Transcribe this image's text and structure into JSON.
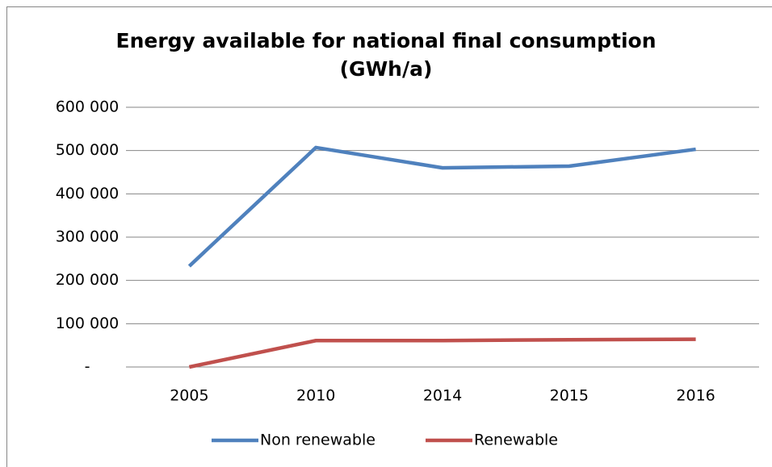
{
  "chart_data": {
    "type": "line",
    "title": [
      "Energy available for national final consumption",
      "(GWh/a)"
    ],
    "categories": [
      "2005",
      "2010",
      "2014",
      "2015",
      "2016"
    ],
    "series": [
      {
        "name": "Non renewable",
        "color": "#4f81bd",
        "values": [
          233000,
          507000,
          460000,
          464000,
          503000
        ]
      },
      {
        "name": "Renewable",
        "color": "#c0504d",
        "values": [
          0,
          61000,
          61000,
          63000,
          64000
        ]
      }
    ],
    "ylim": [
      0,
      600000
    ],
    "yticks": [
      {
        "value": 0,
        "label": "-"
      },
      {
        "value": 100000,
        "label": "100 000"
      },
      {
        "value": 200000,
        "label": "200 000"
      },
      {
        "value": 300000,
        "label": "300 000"
      },
      {
        "value": 400000,
        "label": "400 000"
      },
      {
        "value": 500000,
        "label": "500 000"
      },
      {
        "value": 600000,
        "label": "600 000"
      }
    ],
    "grid": true,
    "legend": "bottom"
  }
}
